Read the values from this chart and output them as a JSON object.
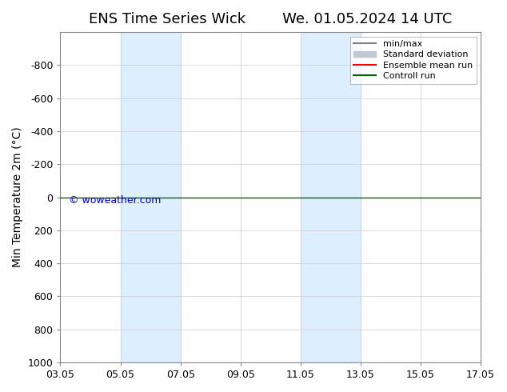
{
  "title": "ENS Time Series Wick        We. 01.05.2024 14 UTC",
  "ylabel": "Min Temperature 2m (°C)",
  "xlim_dates": [
    "03.05",
    "17.05"
  ],
  "ylim": [
    -1000,
    1000
  ],
  "yticks": [
    -800,
    -600,
    -400,
    -200,
    0,
    200,
    400,
    600,
    800,
    1000
  ],
  "xtick_labels": [
    "03.05",
    "05.05",
    "07.05",
    "09.05",
    "11.05",
    "13.05",
    "15.05",
    "17.05"
  ],
  "xtick_positions": [
    0,
    2,
    4,
    6,
    8,
    10,
    12,
    14
  ],
  "shaded_bands": [
    {
      "x_start": 2,
      "x_end": 4
    },
    {
      "x_start": 8,
      "x_end": 10
    }
  ],
  "horizontal_line_y": 0,
  "horizontal_line_color": "#006600",
  "ensemble_mean_color": "#ff0000",
  "minmax_color": "#808080",
  "stddev_color": "#c0c8d0",
  "shaded_color": "#ddeeff",
  "background_color": "#ffffff",
  "watermark": "© woweather.com",
  "watermark_color": "#0000cc",
  "legend_labels": [
    "min/max",
    "Standard deviation",
    "Ensemble mean run",
    "Controll run"
  ],
  "legend_colors": [
    "#808080",
    "#c0c8d0",
    "#ff0000",
    "#006600"
  ],
  "title_fontsize": 13,
  "axis_fontsize": 10,
  "tick_fontsize": 9
}
